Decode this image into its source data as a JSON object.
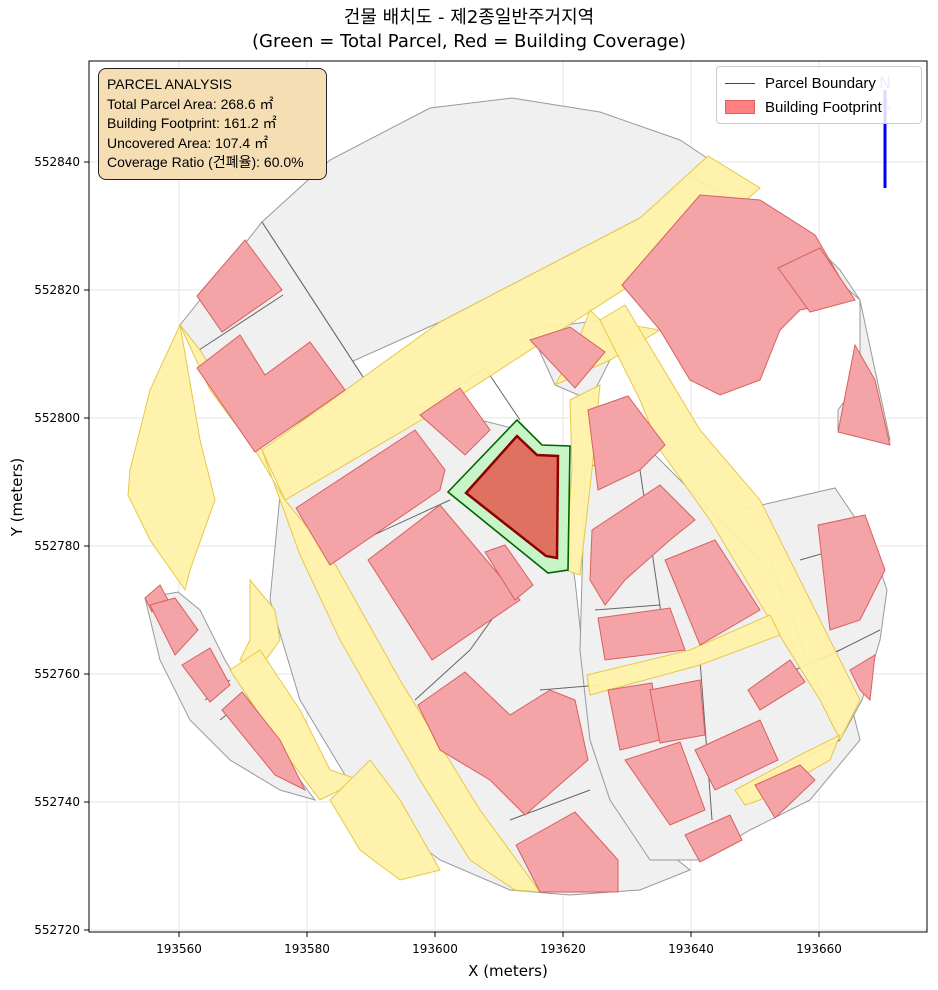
{
  "title": {
    "line1": "건물 배치도 - 제2종일반주거지역",
    "line2": "(Green = Total Parcel, Red = Building Coverage)"
  },
  "axes": {
    "xlabel": "X (meters)",
    "ylabel": "Y (meters)",
    "xticks": [
      "193560",
      "193580",
      "193600",
      "193620",
      "193640",
      "193660"
    ],
    "yticks": [
      "552720",
      "552740",
      "552760",
      "552780",
      "552800",
      "552820",
      "552840"
    ]
  },
  "info_box": {
    "heading": "PARCEL ANALYSIS",
    "total_area": "Total Parcel Area: 268.6 ㎡",
    "footprint": "Building Footprint: 161.2 ㎡",
    "uncovered": "Uncovered Area: 107.4 ㎡",
    "coverage": "Coverage Ratio (건폐율): 60.0%"
  },
  "legend": {
    "parcel_label": "Parcel Boundary",
    "building_label": "Building Footprint"
  },
  "north_arrow": {
    "label": "N"
  },
  "colors": {
    "parcel_fill": "#c8f5c8",
    "parcel_edge": "#006400",
    "building_fill": "#e07060",
    "building_edge": "#8b0000",
    "context_building": "#f4a3a6",
    "road": "#fff1a8",
    "lot": "#f0f0f0",
    "north_arrow": "#0000ff"
  }
}
